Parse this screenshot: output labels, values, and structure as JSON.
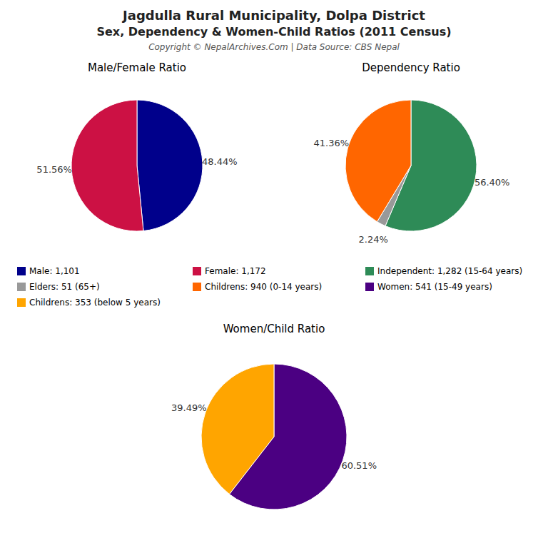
{
  "title": "Jagdulla Rural Municipality, Dolpa District",
  "subtitle": "Sex, Dependency & Women-Child Ratios (2011 Census)",
  "annotations": [
    "Copyright © NepalArchives.Com | Data Source: CBS Nepal"
  ],
  "chart_data": [
    {
      "type": "pie",
      "title": "Male/Female Ratio",
      "categories": [
        "Male: 1,101",
        "Female: 1,172"
      ],
      "values": [
        48.44,
        51.56
      ],
      "value_labels": [
        "48.44%",
        "51.56%"
      ],
      "colors": [
        "#00008B",
        "#CC1144"
      ],
      "data_labels": true,
      "legend": "bottom"
    },
    {
      "type": "pie",
      "title": "Dependency Ratio",
      "categories": [
        "Independent: 1,282 (15-64 years)",
        "Elders: 51 (65+)",
        "Childrens: 940 (0-14 years)"
      ],
      "values": [
        56.4,
        2.24,
        41.36
      ],
      "value_labels": [
        "56.40%",
        "2.24%",
        "41.36%"
      ],
      "colors": [
        "#2E8B57",
        "#999999",
        "#FF6600"
      ],
      "data_labels": true,
      "legend": "bottom"
    },
    {
      "type": "pie",
      "title": "Women/Child Ratio",
      "categories": [
        "Women: 541 (15-49 years)",
        "Childrens: 353 (below 5 years)"
      ],
      "values": [
        60.51,
        39.49
      ],
      "value_labels": [
        "60.51%",
        "39.49%"
      ],
      "colors": [
        "#4B0082",
        "#FFA500"
      ],
      "data_labels": true,
      "legend": "bottom"
    }
  ]
}
